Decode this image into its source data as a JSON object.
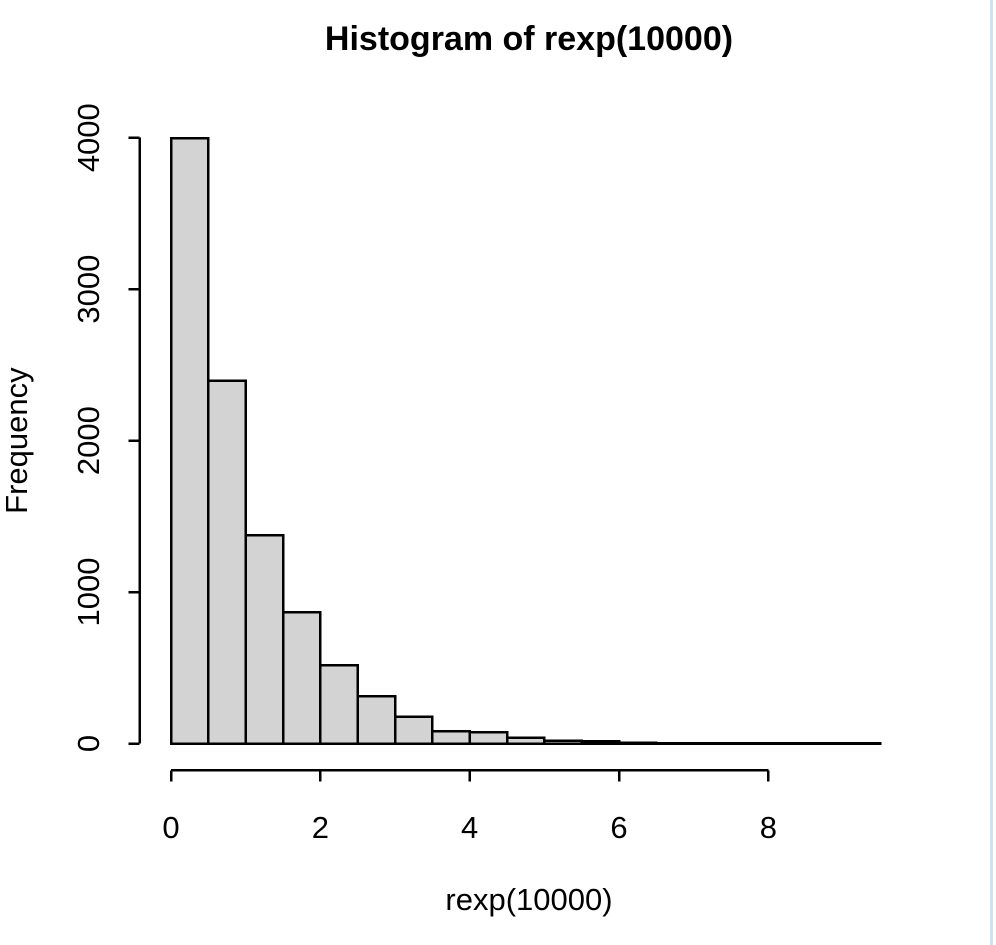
{
  "window": {
    "background": "#ffffff",
    "right_edge_line_color": "#d0e1f1"
  },
  "chart_data": {
    "type": "histogram",
    "title": "Histogram of rexp(10000)",
    "xlabel": "rexp(10000)",
    "ylabel": "Frequency",
    "bin_start": 0,
    "bin_width": 0.5,
    "counts": [
      3995,
      2395,
      1375,
      868,
      518,
      312,
      178,
      82,
      73,
      39,
      19,
      15,
      4,
      3,
      2,
      2,
      1,
      1,
      1
    ],
    "x_ticks": [
      0,
      2,
      4,
      6,
      8
    ],
    "y_ticks": [
      0,
      1000,
      2000,
      3000,
      4000
    ],
    "xlim": [
      0,
      9.5
    ],
    "ylim": [
      0,
      4000
    ],
    "grid": false,
    "legend": null,
    "bar_fill": "#d3d3d3",
    "bar_stroke": "#000000",
    "axis_color": "#000000"
  }
}
